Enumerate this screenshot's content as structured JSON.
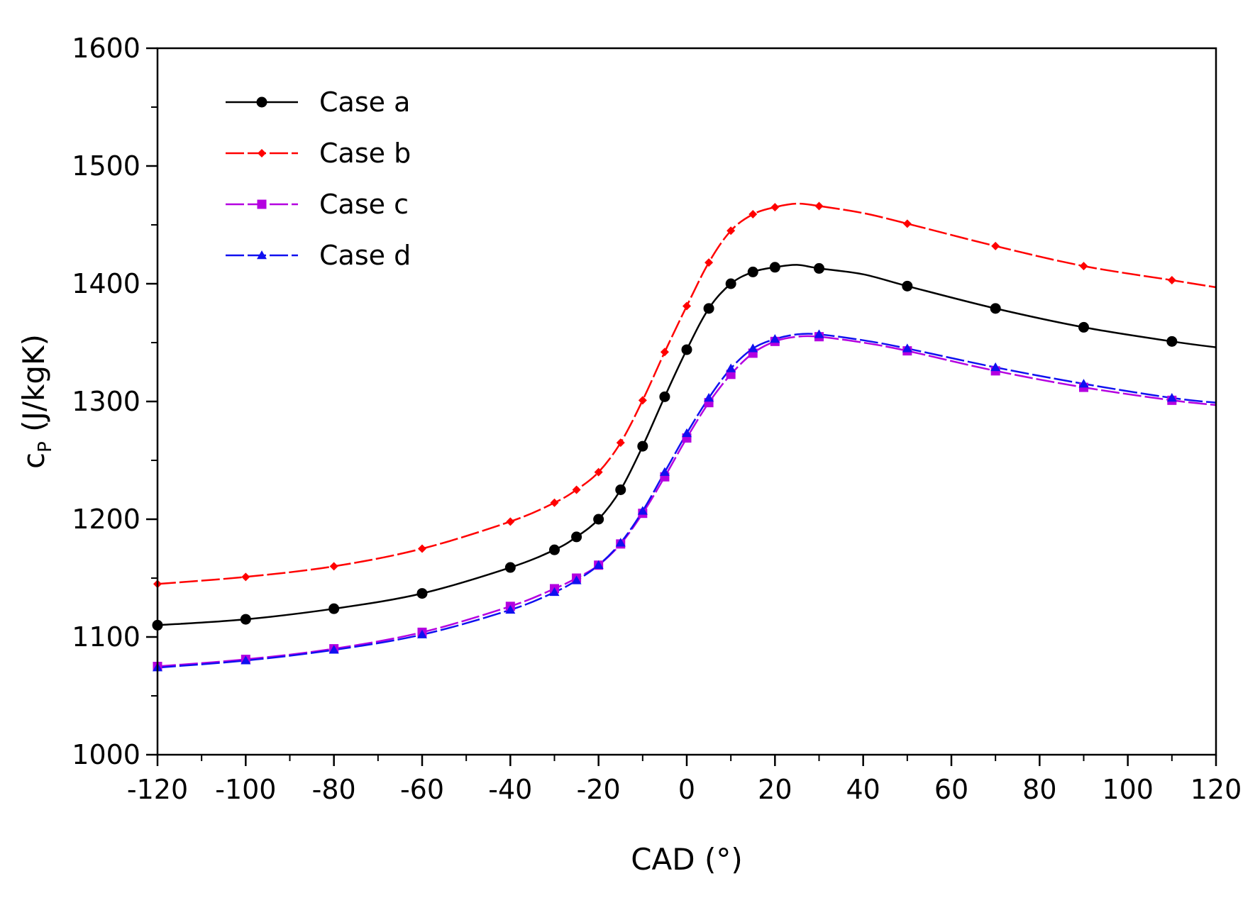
{
  "chart_data": {
    "type": "line",
    "title": "",
    "xlabel": "CAD (°)",
    "ylabel_main": "c",
    "ylabel_sub": "P",
    "ylabel_rest": " (J/kgK)",
    "xlim": [
      -120,
      120
    ],
    "ylim": [
      1000,
      1600
    ],
    "xticks": [
      -120,
      -100,
      -80,
      -60,
      -40,
      -20,
      0,
      20,
      40,
      60,
      80,
      100,
      120
    ],
    "yticks": [
      1000,
      1100,
      1200,
      1300,
      1400,
      1500,
      1600
    ],
    "x_minor_step": 20,
    "y_minor_step": 50,
    "grid": false,
    "legend_position": "top-left",
    "series": [
      {
        "name": "Case a",
        "color": "#000000",
        "marker": "circle",
        "dash": "solid",
        "curve_x": [
          -120,
          -100,
          -80,
          -60,
          -40,
          -30,
          -25,
          -20,
          -15,
          -10,
          -5,
          0,
          5,
          10,
          15,
          20,
          25,
          30,
          40,
          50,
          70,
          90,
          110,
          120
        ],
        "curve_y": [
          1110,
          1115,
          1124,
          1137,
          1159,
          1174,
          1185,
          1200,
          1225,
          1262,
          1304,
          1344,
          1379,
          1400,
          1410,
          1414,
          1416,
          1413,
          1408,
          1398,
          1379,
          1363,
          1351,
          1346
        ],
        "marker_x": [
          -120,
          -100,
          -80,
          -60,
          -40,
          -30,
          -25,
          -20,
          -15,
          -10,
          -5,
          0,
          5,
          10,
          15,
          20,
          30,
          50,
          70,
          90,
          110
        ],
        "marker_y": [
          1110,
          1115,
          1124,
          1137,
          1159,
          1174,
          1185,
          1200,
          1225,
          1262,
          1304,
          1344,
          1379,
          1400,
          1410,
          1414,
          1413,
          1398,
          1379,
          1363,
          1351
        ]
      },
      {
        "name": "Case b",
        "color": "#ff0000",
        "marker": "diamond",
        "dash": "dashed",
        "curve_x": [
          -120,
          -100,
          -80,
          -60,
          -40,
          -30,
          -25,
          -20,
          -15,
          -10,
          -5,
          0,
          5,
          10,
          15,
          20,
          25,
          30,
          40,
          50,
          70,
          90,
          110,
          120
        ],
        "curve_y": [
          1145,
          1151,
          1160,
          1175,
          1198,
          1214,
          1225,
          1240,
          1265,
          1301,
          1342,
          1381,
          1418,
          1445,
          1459,
          1465,
          1468,
          1466,
          1460,
          1451,
          1432,
          1415,
          1403,
          1397
        ],
        "marker_x": [
          -120,
          -100,
          -80,
          -60,
          -40,
          -30,
          -25,
          -20,
          -15,
          -10,
          -5,
          0,
          5,
          10,
          15,
          20,
          30,
          50,
          70,
          90,
          110
        ],
        "marker_y": [
          1145,
          1151,
          1160,
          1175,
          1198,
          1214,
          1225,
          1240,
          1265,
          1301,
          1342,
          1381,
          1418,
          1445,
          1459,
          1465,
          1466,
          1451,
          1432,
          1415,
          1403
        ]
      },
      {
        "name": "Case c",
        "color": "#b400e0",
        "marker": "square",
        "dash": "dashed",
        "curve_x": [
          -120,
          -100,
          -80,
          -60,
          -40,
          -30,
          -25,
          -20,
          -15,
          -10,
          -5,
          0,
          5,
          10,
          15,
          20,
          25,
          30,
          40,
          50,
          70,
          90,
          110,
          120
        ],
        "curve_y": [
          1075,
          1081,
          1090,
          1104,
          1126,
          1141,
          1150,
          1161,
          1179,
          1205,
          1236,
          1269,
          1299,
          1323,
          1341,
          1351,
          1355,
          1355,
          1350,
          1343,
          1326,
          1312,
          1301,
          1297
        ],
        "marker_x": [
          -120,
          -100,
          -80,
          -60,
          -40,
          -30,
          -25,
          -20,
          -15,
          -10,
          -5,
          0,
          5,
          10,
          15,
          20,
          30,
          50,
          70,
          90,
          110
        ],
        "marker_y": [
          1075,
          1081,
          1090,
          1104,
          1126,
          1141,
          1150,
          1161,
          1179,
          1205,
          1236,
          1269,
          1299,
          1323,
          1341,
          1351,
          1355,
          1343,
          1326,
          1312,
          1301
        ]
      },
      {
        "name": "Case d",
        "color": "#1010f0",
        "marker": "triangle",
        "dash": "dashed",
        "curve_x": [
          -120,
          -100,
          -80,
          -60,
          -40,
          -30,
          -25,
          -20,
          -15,
          -10,
          -5,
          0,
          5,
          10,
          15,
          20,
          25,
          30,
          40,
          50,
          70,
          90,
          110,
          120
        ],
        "curve_y": [
          1074,
          1080,
          1089,
          1102,
          1123,
          1138,
          1148,
          1161,
          1180,
          1207,
          1240,
          1273,
          1303,
          1328,
          1345,
          1353,
          1357,
          1357,
          1352,
          1345,
          1329,
          1315,
          1303,
          1299
        ],
        "marker_x": [
          -120,
          -100,
          -80,
          -60,
          -40,
          -30,
          -25,
          -20,
          -15,
          -10,
          -5,
          0,
          5,
          10,
          15,
          20,
          30,
          50,
          70,
          90,
          110
        ],
        "marker_y": [
          1074,
          1080,
          1089,
          1102,
          1123,
          1138,
          1148,
          1161,
          1180,
          1207,
          1240,
          1273,
          1303,
          1328,
          1345,
          1353,
          1357,
          1345,
          1329,
          1315,
          1303
        ]
      }
    ]
  }
}
